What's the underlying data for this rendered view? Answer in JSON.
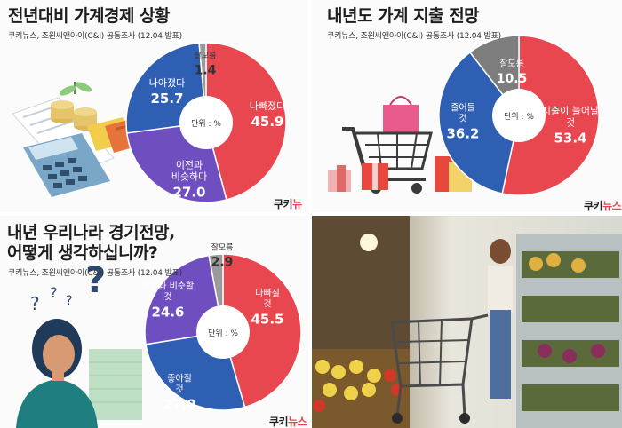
{
  "colors": {
    "red": "#e8474f",
    "blue": "#2f5fb3",
    "purple": "#6f4fc0",
    "gray": "#9a9a9a",
    "darkgray": "#7d7d7d",
    "text": "#1d1d1d"
  },
  "logo": {
    "main": "쿠키",
    "accent": "뉴스"
  },
  "panels": {
    "p1": {
      "title": "전년대비 가계경제 상황",
      "source": "쿠키뉴스, 조원씨앤아이(C&I) 공동조사 (12.04 발표)"
    },
    "p2": {
      "title": "내년도 가계 지출 전망",
      "source": "쿠키뉴스, 조원씨앤아이(C&I) 공동조사 (12.04 발표)"
    },
    "p3": {
      "title_line1": "내년 우리나라 경기전망,",
      "title_line2": "어떻게 생각하십니까?",
      "source": "쿠키뉴스, 조원씨앤아이(C&I) 공동조사 (12.04 발표)"
    }
  },
  "chart_data": [
    {
      "type": "pie",
      "title": "전년대비 가계경제 상황",
      "center_label": "단위 : %",
      "slices": [
        {
          "label": "나빠졌다",
          "value": 45.9,
          "color": "#e8474f"
        },
        {
          "label": "이전과 비슷하다",
          "value": 27.0,
          "color": "#6f4fc0"
        },
        {
          "label": "나아졌다",
          "value": 25.7,
          "color": "#2f5fb3"
        },
        {
          "label": "잘모름",
          "value": 1.4,
          "color": "#9a9a9a"
        }
      ]
    },
    {
      "type": "pie",
      "title": "내년도 가계 지출 전망",
      "center_label": "단위 : %",
      "slices": [
        {
          "label": "지출이 늘어날 것",
          "value": 53.4,
          "color": "#e8474f"
        },
        {
          "label": "줄어들 것",
          "value": 36.2,
          "color": "#2f5fb3"
        },
        {
          "label": "잘모름",
          "value": 10.5,
          "color": "#7d7d7d"
        }
      ]
    },
    {
      "type": "pie",
      "title": "내년 우리나라 경기전망, 어떻게 생각하십니까?",
      "center_label": "단위 : %",
      "slices": [
        {
          "label": "나빠질 것",
          "value": 45.5,
          "color": "#e8474f"
        },
        {
          "label": "좋아질 것",
          "value": 27.0,
          "color": "#2f5fb3"
        },
        {
          "label": "이전과 비슷할 것",
          "value": 24.6,
          "color": "#6f4fc0"
        },
        {
          "label": "잘모름",
          "value": 2.9,
          "color": "#9a9a9a"
        }
      ]
    }
  ]
}
